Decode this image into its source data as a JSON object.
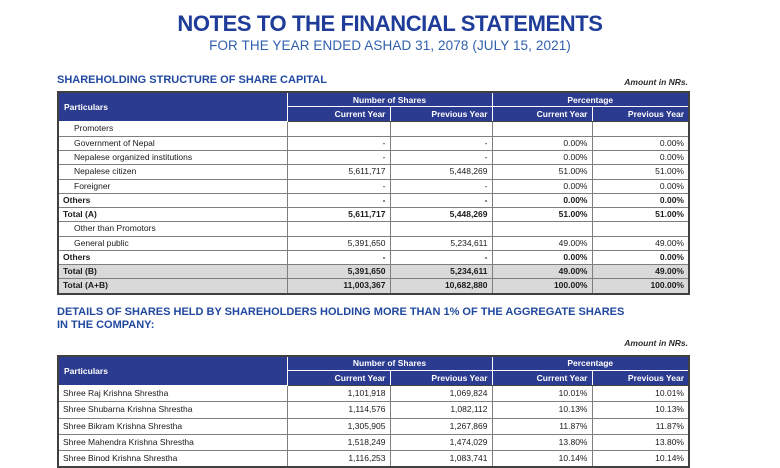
{
  "header": {
    "title": "NOTES TO THE FINANCIAL STATEMENTS",
    "subtitle": "FOR THE YEAR ENDED ASHAD 31, 2078 (JULY 15, 2021)"
  },
  "colors": {
    "title_blue": "#1e3c98",
    "subtitle_blue": "#2f5fae",
    "section_heading_blue": "#2149a0",
    "table_header_bg": "#2b3b8f",
    "table_header_text": "#ffffff",
    "shaded_row_bg": "#d9d9d9",
    "border_gray": "#7f7f7f"
  },
  "sections": [
    {
      "heading": [
        "SHAREHOLDING STRUCTURE OF SHARE CAPITAL"
      ],
      "amount_note": "Amount in NRs.",
      "table": {
        "particulars_label": "Particulars",
        "groups": [
          "Number of Shares",
          "Percentage"
        ],
        "sub_headers": [
          "Current Year",
          "Previous Year",
          "Current Year",
          "Previous Year"
        ],
        "rows": [
          {
            "label": "Promoters",
            "indent": true,
            "bold": false,
            "shaded": false,
            "strong": false,
            "cells": [
              "",
              "",
              "",
              ""
            ]
          },
          {
            "label": "Government of Nepal",
            "indent": true,
            "bold": false,
            "shaded": false,
            "strong": false,
            "cells": [
              "-",
              "-",
              "0.00%",
              "0.00%"
            ]
          },
          {
            "label": "Nepalese organized institutions",
            "indent": true,
            "bold": false,
            "shaded": false,
            "strong": false,
            "cells": [
              "-",
              "-",
              "0.00%",
              "0.00%"
            ]
          },
          {
            "label": "Nepalese citizen",
            "indent": true,
            "bold": false,
            "shaded": false,
            "strong": false,
            "cells": [
              "5,611,717",
              "5,448,269",
              "51.00%",
              "51.00%"
            ]
          },
          {
            "label": "Foreigner",
            "indent": true,
            "bold": false,
            "shaded": false,
            "strong": false,
            "cells": [
              "-",
              "-",
              "0.00%",
              "0.00%"
            ]
          },
          {
            "label": "Others",
            "indent": false,
            "bold": true,
            "shaded": false,
            "strong": true,
            "cells": [
              "-",
              "-",
              "0.00%",
              "0.00%"
            ]
          },
          {
            "label": "Total  (A)",
            "indent": false,
            "bold": true,
            "shaded": false,
            "strong": true,
            "cells": [
              "5,611,717",
              "5,448,269",
              "51.00%",
              "51.00%"
            ]
          },
          {
            "label": "Other than Promotors",
            "indent": true,
            "bold": false,
            "shaded": false,
            "strong": false,
            "cells": [
              "",
              "",
              "",
              ""
            ]
          },
          {
            "label": "General public",
            "indent": true,
            "bold": false,
            "shaded": false,
            "strong": false,
            "cells": [
              "5,391,650",
              "5,234,611",
              "49.00%",
              "49.00%"
            ]
          },
          {
            "label": "Others",
            "indent": false,
            "bold": true,
            "shaded": false,
            "strong": true,
            "cells": [
              "-",
              "-",
              "0.00%",
              "0.00%"
            ]
          },
          {
            "label": "Total  (B)",
            "indent": false,
            "bold": true,
            "shaded": true,
            "strong": true,
            "cells": [
              "5,391,650",
              "5,234,611",
              "49.00%",
              "49.00%"
            ]
          },
          {
            "label": "Total (A+B)",
            "indent": false,
            "bold": true,
            "shaded": true,
            "strong": true,
            "cells": [
              "11,003,367",
              "10,682,880",
              "100.00%",
              "100.00%"
            ]
          }
        ]
      }
    },
    {
      "heading": [
        "DETAILS OF SHARES HELD BY SHAREHOLDERS HOLDING MORE THAN 1% OF THE AGGREGATE SHARES",
        "IN THE COMPANY:"
      ],
      "amount_note": "Amount in NRs.",
      "table": {
        "particulars_label": "Particulars",
        "groups": [
          "Number of Shares",
          "Percentage"
        ],
        "sub_headers": [
          "Current Year",
          "Previous Year",
          "Current Year",
          "Previous Year"
        ],
        "rows": [
          {
            "label": "Shree Raj Krishna Shrestha",
            "indent": false,
            "bold": false,
            "shaded": false,
            "strong": false,
            "cells": [
              "1,101,918",
              "1,069,824",
              "10.01%",
              "10.01%"
            ]
          },
          {
            "label": "Shree Shubarna Krishna Shrestha",
            "indent": false,
            "bold": false,
            "shaded": false,
            "strong": false,
            "cells": [
              "1,114,576",
              "1,082,112",
              "10.13%",
              "10.13%"
            ]
          },
          {
            "label": "Shree Bikram Krishna Shrestha",
            "indent": false,
            "bold": false,
            "shaded": false,
            "strong": false,
            "cells": [
              "1,305,905",
              "1,267,869",
              "11.87%",
              "11.87%"
            ]
          },
          {
            "label": "Shree Mahendra Krishna Shrestha",
            "indent": false,
            "bold": false,
            "shaded": false,
            "strong": false,
            "cells": [
              "1,518,249",
              "1,474,029",
              "13.80%",
              "13.80%"
            ]
          },
          {
            "label": "Shree Binod Krishna Shrestha",
            "indent": false,
            "bold": false,
            "shaded": false,
            "strong": false,
            "cells": [
              "1,116,253",
              "1,083,741",
              "10.14%",
              "10.14%"
            ]
          }
        ]
      }
    }
  ]
}
